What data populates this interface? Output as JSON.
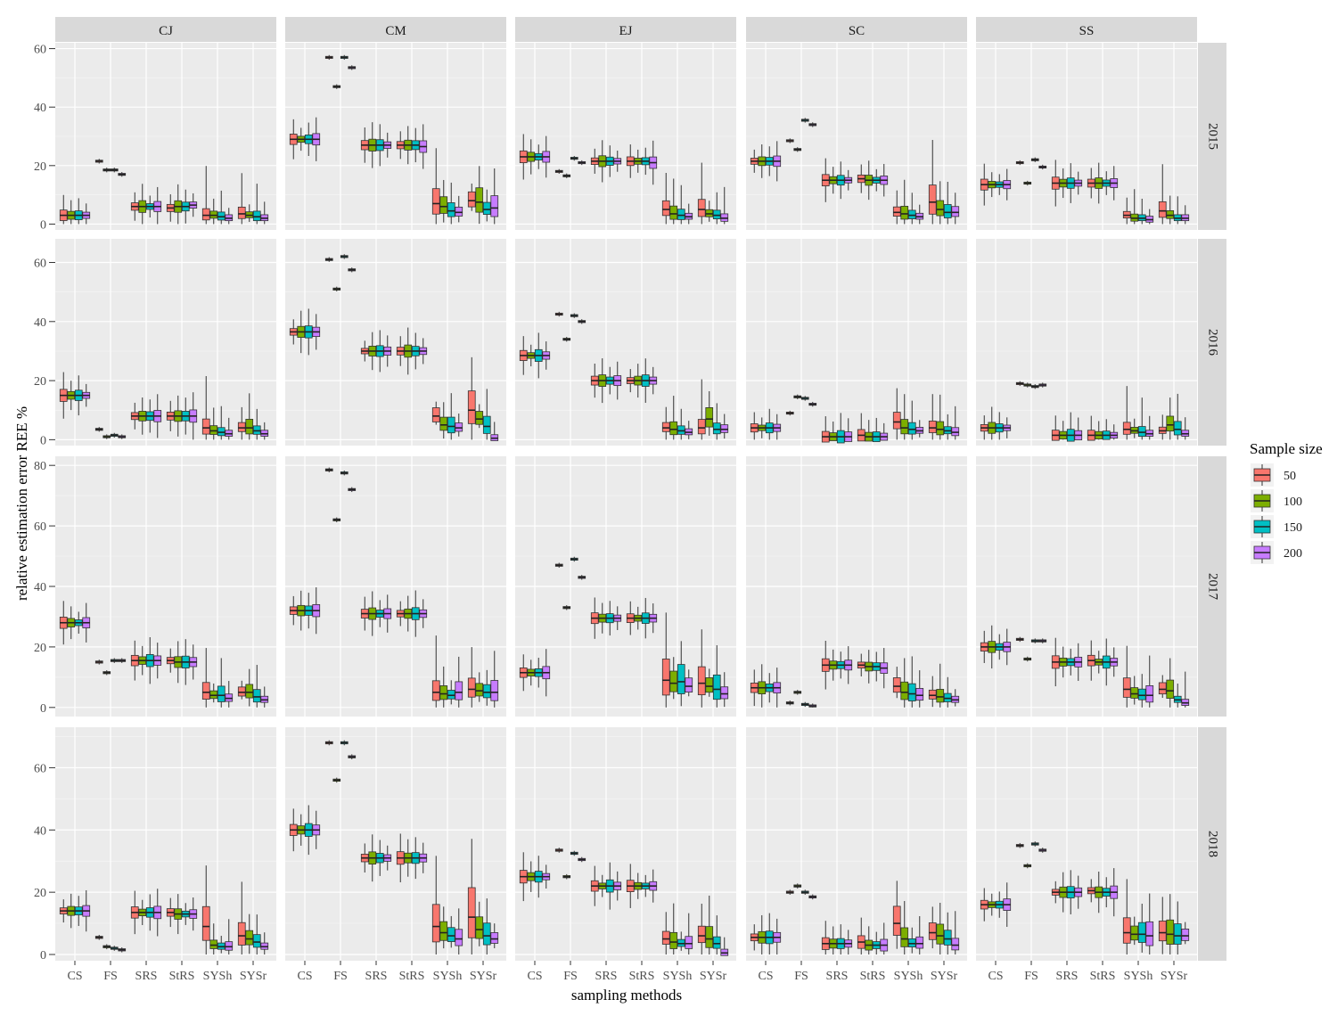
{
  "chart_data": {
    "type": "boxplot",
    "facet_layout": "grid",
    "x_label": "sampling methods",
    "y_label": "relative estimation error REE %",
    "legend_title": "Sample size",
    "legend_position": "right",
    "species": [
      "CJ",
      "CM",
      "EJ",
      "SC",
      "SS"
    ],
    "years": [
      "2015",
      "2016",
      "2017",
      "2018"
    ],
    "methods": [
      "CS",
      "FS",
      "SRS",
      "StRS",
      "SYSh",
      "SYSr"
    ],
    "sample_sizes": [
      "50",
      "100",
      "150",
      "200"
    ],
    "colors": [
      "#F8766D",
      "#7CAE00",
      "#00BFC4",
      "#C77CFF"
    ],
    "value_note": "Each value is the approximate median REE % for sample sizes 50, 100, 150, 200, read from the box midlines.",
    "panel_rows": [
      {
        "year": "2015",
        "y_range": [
          -2,
          62
        ],
        "y_ticks": [
          0,
          20,
          40,
          60
        ],
        "medians": {
          "CJ": {
            "CS": [
              3,
              3,
              3,
              3
            ],
            "FS": [
              21.5,
              18.5,
              18.5,
              17
            ],
            "SRS": [
              6,
              6,
              6,
              6
            ],
            "StRS": [
              5.5,
              6,
              6,
              6.5
            ],
            "SYSh": [
              3,
              3,
              2.5,
              2
            ],
            "SYSr": [
              3.5,
              3,
              2.5,
              2
            ]
          },
          "CM": {
            "CS": [
              29,
              29,
              29,
              29
            ],
            "FS": [
              57,
              47,
              57,
              53.5
            ],
            "SRS": [
              27,
              27,
              27,
              27
            ],
            "StRS": [
              27,
              27,
              27,
              26.5
            ],
            "SYSh": [
              7,
              6,
              4.5,
              4
            ],
            "SYSr": [
              8,
              7.5,
              5,
              5.5
            ]
          },
          "EJ": {
            "CS": [
              23,
              23,
              23,
              23
            ],
            "FS": [
              18,
              16.5,
              22.5,
              21
            ],
            "SRS": [
              21.5,
              21.5,
              21.5,
              21.5
            ],
            "StRS": [
              21.5,
              21.5,
              21.5,
              21
            ],
            "SYSh": [
              5,
              3.5,
              3,
              2.5
            ],
            "SYSr": [
              5,
              3.5,
              3,
              2
            ]
          },
          "SC": {
            "CS": [
              21.5,
              21.5,
              21.5,
              21.5
            ],
            "FS": [
              28.5,
              25.5,
              35.5,
              34
            ],
            "SRS": [
              15,
              15,
              15,
              15
            ],
            "StRS": [
              15.5,
              15,
              15,
              15
            ],
            "SYSh": [
              4,
              3.5,
              3,
              2.5
            ],
            "SYSr": [
              7.5,
              5,
              4,
              4
            ]
          },
          "SS": {
            "CS": [
              13.5,
              13.5,
              13.5,
              13.5
            ],
            "FS": [
              21,
              14,
              22,
              19.5
            ],
            "SRS": [
              14,
              14,
              14,
              14
            ],
            "StRS": [
              14,
              14,
              14,
              14
            ],
            "SYSh": [
              3,
              2,
              2,
              1.5
            ],
            "SYSr": [
              4.5,
              3,
              2,
              2
            ]
          }
        }
      },
      {
        "year": "2016",
        "y_range": [
          -2,
          68
        ],
        "y_ticks": [
          0,
          20,
          40,
          60
        ],
        "medians": {
          "CJ": {
            "CS": [
              15,
              15,
              15,
              15
            ],
            "FS": [
              3.5,
              1,
              1.5,
              1
            ],
            "SRS": [
              8,
              8,
              8,
              8
            ],
            "StRS": [
              8,
              8,
              8,
              8
            ],
            "SYSh": [
              4,
              3,
              2.5,
              2
            ],
            "SYSr": [
              4,
              4,
              3,
              2
            ]
          },
          "CM": {
            "CS": [
              36.5,
              36.5,
              36.5,
              36.5
            ],
            "FS": [
              61,
              51,
              62,
              57.5
            ],
            "SRS": [
              30,
              30,
              30,
              30
            ],
            "StRS": [
              30,
              30,
              30,
              30
            ],
            "SYSh": [
              8,
              5,
              4.5,
              4
            ],
            "SYSr": [
              10,
              7,
              4.5,
              0.5
            ]
          },
          "EJ": {
            "CS": [
              28.5,
              28.5,
              28.5,
              28.5
            ],
            "FS": [
              42.5,
              34,
              42,
              40
            ],
            "SRS": [
              20,
              20,
              20,
              20
            ],
            "StRS": [
              20,
              20,
              20,
              20
            ],
            "SYSh": [
              4,
              3.5,
              3,
              2.5
            ],
            "SYSr": [
              4,
              7,
              3.5,
              3.5
            ]
          },
          "SC": {
            "CS": [
              4,
              4,
              4,
              4
            ],
            "FS": [
              9,
              14.5,
              14,
              12
            ],
            "SRS": [
              1,
              1,
              1,
              1
            ],
            "StRS": [
              1.5,
              1,
              1,
              1
            ],
            "SYSh": [
              6,
              4,
              3.5,
              3
            ],
            "SYSr": [
              4,
              3.5,
              3,
              2.5
            ]
          },
          "SS": {
            "CS": [
              4,
              4,
              4,
              4
            ],
            "FS": [
              19,
              18.5,
              18,
              18.5
            ],
            "SRS": [
              1.5,
              1.5,
              1.5,
              1.5
            ],
            "StRS": [
              1.5,
              1.5,
              1.5,
              1.5
            ],
            "SYSh": [
              3.5,
              3,
              2.5,
              2
            ],
            "SYSr": [
              3,
              5,
              3.5,
              2
            ]
          }
        }
      },
      {
        "year": "2017",
        "y_range": [
          -3,
          83
        ],
        "y_ticks": [
          0,
          20,
          40,
          60,
          80
        ],
        "medians": {
          "CJ": {
            "CS": [
              28,
              28,
              28,
              28
            ],
            "FS": [
              15,
              11.5,
              15.5,
              15.5
            ],
            "SRS": [
              15.5,
              15.5,
              15.5,
              15.5
            ],
            "StRS": [
              15.5,
              15,
              15,
              15
            ],
            "SYSh": [
              5,
              4,
              4,
              3
            ],
            "SYSr": [
              5,
              5,
              3.5,
              2.5
            ]
          },
          "CM": {
            "CS": [
              32,
              32,
              32,
              32
            ],
            "FS": [
              78.5,
              62,
              77.5,
              72
            ],
            "SRS": [
              31,
              31,
              31,
              31
            ],
            "StRS": [
              31,
              31,
              31,
              31
            ],
            "SYSh": [
              5,
              4.5,
              4,
              5
            ],
            "SYSr": [
              6,
              5.5,
              5,
              5
            ]
          },
          "EJ": {
            "CS": [
              11.5,
              11.5,
              11.5,
              11.5
            ],
            "FS": [
              47,
              33,
              49,
              43
            ],
            "SRS": [
              29.5,
              29.5,
              29.5,
              29.5
            ],
            "StRS": [
              29.5,
              29.5,
              29.5,
              29.5
            ],
            "SYSh": [
              9,
              8,
              8.5,
              7
            ],
            "SYSr": [
              8,
              7,
              6,
              4.5
            ]
          },
          "SC": {
            "CS": [
              6.5,
              6.5,
              6.5,
              6.5
            ],
            "FS": [
              1.5,
              5,
              1,
              0.5
            ],
            "SRS": [
              14,
              14,
              14,
              14
            ],
            "StRS": [
              14,
              13.5,
              13.5,
              13
            ],
            "SYSh": [
              7,
              5,
              4.5,
              4
            ],
            "SYSr": [
              4,
              3.5,
              3,
              2.5
            ]
          },
          "SS": {
            "CS": [
              20,
              20,
              20,
              20
            ],
            "FS": [
              22.5,
              16,
              22,
              22
            ],
            "SRS": [
              15,
              15,
              15,
              15
            ],
            "StRS": [
              15.5,
              15,
              15,
              15
            ],
            "SYSh": [
              6,
              4.5,
              4,
              4
            ],
            "SYSr": [
              6,
              5.5,
              2.5,
              1.5
            ]
          }
        }
      },
      {
        "year": "2018",
        "y_range": [
          -2,
          73
        ],
        "y_ticks": [
          0,
          20,
          40,
          60
        ],
        "medians": {
          "CJ": {
            "CS": [
              14,
              14,
              14,
              14
            ],
            "FS": [
              5.5,
              2.5,
              2,
              1.5
            ],
            "SRS": [
              13.5,
              13.5,
              13.5,
              13.5
            ],
            "StRS": [
              13.5,
              13,
              13,
              13
            ],
            "SYSh": [
              9,
              3,
              2.5,
              2.5
            ],
            "SYSr": [
              6,
              5,
              4,
              2.5
            ]
          },
          "CM": {
            "CS": [
              40,
              40,
              40,
              40
            ],
            "FS": [
              68,
              56,
              68,
              63.5
            ],
            "SRS": [
              31,
              31,
              31,
              31
            ],
            "StRS": [
              31,
              31,
              31,
              31
            ],
            "SYSh": [
              9,
              7,
              6,
              5
            ],
            "SYSr": [
              12,
              8,
              6,
              5
            ]
          },
          "EJ": {
            "CS": [
              25,
              25,
              25,
              25
            ],
            "FS": [
              33.5,
              25,
              32.5,
              30.5
            ],
            "SRS": [
              22,
              22,
              22,
              22
            ],
            "StRS": [
              22,
              22,
              22,
              22
            ],
            "SYSh": [
              5,
              4,
              3.5,
              3.5
            ],
            "SYSr": [
              6,
              5,
              3.5,
              0.5
            ]
          },
          "SC": {
            "CS": [
              5.5,
              5.5,
              5.5,
              5.5
            ],
            "FS": [
              20,
              22,
              20,
              18.5
            ],
            "SRS": [
              3.5,
              3.5,
              3.5,
              3.5
            ],
            "StRS": [
              4,
              3,
              3,
              3
            ],
            "SYSh": [
              10,
              5,
              3.5,
              3.5
            ],
            "SYSr": [
              7,
              6,
              5,
              3
            ]
          },
          "SS": {
            "CS": [
              16,
              16,
              16,
              16
            ],
            "FS": [
              35,
              28.5,
              35.5,
              33.5
            ],
            "SRS": [
              20,
              20,
              20,
              20
            ],
            "StRS": [
              20.5,
              20,
              20,
              20
            ],
            "SYSh": [
              7,
              6.5,
              6.5,
              6
            ],
            "SYSr": [
              7,
              6.5,
              6,
              6
            ]
          }
        }
      }
    ]
  }
}
